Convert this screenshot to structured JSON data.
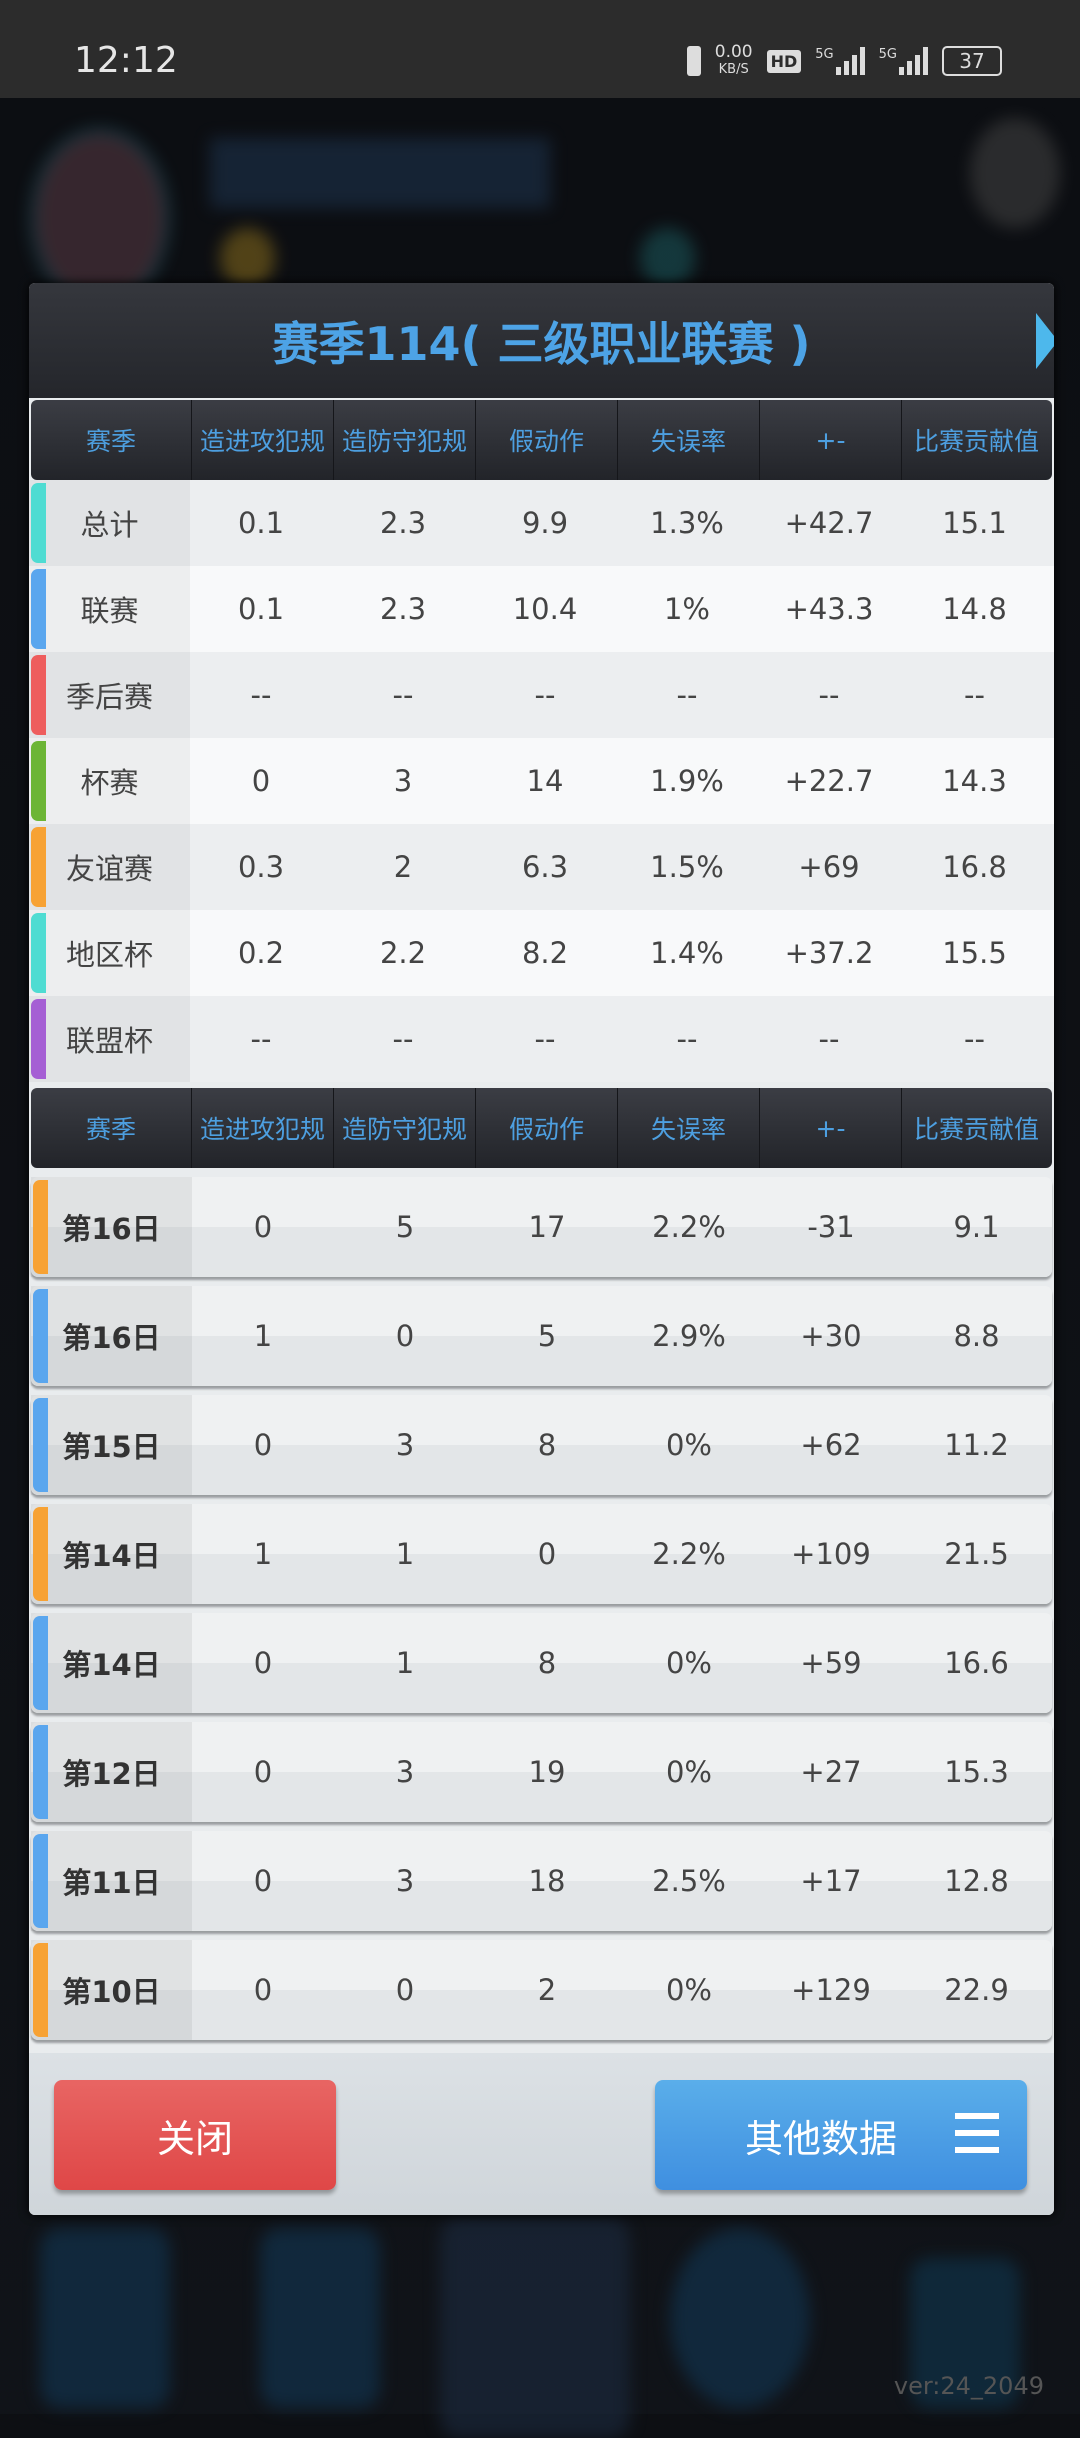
{
  "status_bar": {
    "time": "12:12",
    "speed": "0.00",
    "speed_unit": "KB/S",
    "hd": "HD",
    "net1": "5G",
    "net2": "5G",
    "battery": "37"
  },
  "background": {
    "version": "ver:24_2049"
  },
  "dialog": {
    "title": "赛季114( 三级职业联赛 )",
    "columns": [
      "赛季",
      "造进攻犯规",
      "造防守犯规",
      "假动作",
      "失误率",
      "+-",
      "比赛贡献值"
    ],
    "summary_rows": [
      {
        "label": "总计",
        "color": "#4fdcd2",
        "values": [
          "0.1",
          "2.3",
          "9.9",
          "1.3%",
          "+42.7",
          "15.1"
        ]
      },
      {
        "label": "联赛",
        "color": "#5aa6ee",
        "values": [
          "0.1",
          "2.3",
          "10.4",
          "1%",
          "+43.3",
          "14.8"
        ]
      },
      {
        "label": "季后赛",
        "color": "#ee5d5d",
        "values": [
          "--",
          "--",
          "--",
          "--",
          "--",
          "--"
        ]
      },
      {
        "label": "杯赛",
        "color": "#6cb535",
        "values": [
          "0",
          "3",
          "14",
          "1.9%",
          "+22.7",
          "14.3"
        ]
      },
      {
        "label": "友谊赛",
        "color": "#f7a234",
        "values": [
          "0.3",
          "2",
          "6.3",
          "1.5%",
          "+69",
          "16.8"
        ]
      },
      {
        "label": "地区杯",
        "color": "#4fdcd2",
        "values": [
          "0.2",
          "2.2",
          "8.2",
          "1.4%",
          "+37.2",
          "15.5"
        ]
      },
      {
        "label": "联盟杯",
        "color": "#a55fd4",
        "values": [
          "--",
          "--",
          "--",
          "--",
          "--",
          "--"
        ]
      }
    ],
    "game_rows": [
      {
        "label": "第16日",
        "color": "#f7a234",
        "values": [
          "0",
          "5",
          "17",
          "2.2%",
          "-31",
          "9.1"
        ]
      },
      {
        "label": "第16日",
        "color": "#5aa6ee",
        "values": [
          "1",
          "0",
          "5",
          "2.9%",
          "+30",
          "8.8"
        ]
      },
      {
        "label": "第15日",
        "color": "#5aa6ee",
        "values": [
          "0",
          "3",
          "8",
          "0%",
          "+62",
          "11.2"
        ]
      },
      {
        "label": "第14日",
        "color": "#f7a234",
        "values": [
          "1",
          "1",
          "0",
          "2.2%",
          "+109",
          "21.5"
        ]
      },
      {
        "label": "第14日",
        "color": "#5aa6ee",
        "values": [
          "0",
          "1",
          "8",
          "0%",
          "+59",
          "16.6"
        ]
      },
      {
        "label": "第12日",
        "color": "#5aa6ee",
        "values": [
          "0",
          "3",
          "19",
          "0%",
          "+27",
          "15.3"
        ]
      },
      {
        "label": "第11日",
        "color": "#5aa6ee",
        "values": [
          "0",
          "3",
          "18",
          "2.5%",
          "+17",
          "12.8"
        ]
      },
      {
        "label": "第10日",
        "color": "#f7a234",
        "values": [
          "0",
          "0",
          "2",
          "0%",
          "+129",
          "22.9"
        ]
      }
    ],
    "close_label": "关闭",
    "other_label": "其他数据"
  }
}
